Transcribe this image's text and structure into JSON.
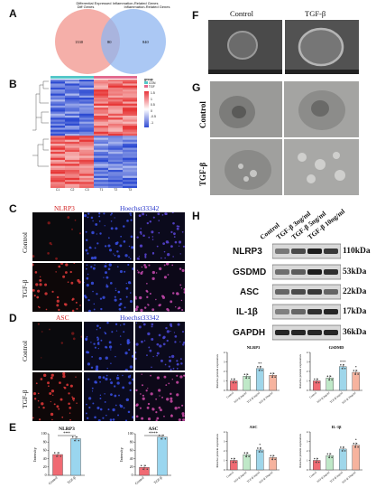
{
  "panels": {
    "A": "A",
    "B": "B",
    "C": "C",
    "D": "D",
    "E": "E",
    "F": "F",
    "G": "G",
    "H": "H"
  },
  "venn": {
    "title": "Differential Expressed Inflammation-Related Genes",
    "left_label": "Diff Genes",
    "right_label": "Inflammation-Related Genes",
    "left_only": "1330",
    "overlap": "80",
    "right_only": "840",
    "left_color": "#f4a6a0",
    "right_color": "#8fb6f0"
  },
  "heatmap": {
    "legend_title": "group",
    "legend_groups": [
      "CON",
      "TGF"
    ],
    "scale_ticks": [
      "1.5",
      "1",
      "0.5",
      "0",
      "-0.5",
      "-1",
      "-1.5"
    ],
    "col_labels": [
      "C1",
      "C2",
      "C3",
      "T1",
      "T2",
      "T3"
    ],
    "row_count": 54
  },
  "panel_c": {
    "header_left": "NLRP3",
    "header_right": "Hoechst33342",
    "rows": [
      "Control",
      "TGF-β"
    ]
  },
  "panel_d": {
    "header_left": "ASC",
    "header_right": "Hoechst33342",
    "rows": [
      "Control",
      "TGF-β"
    ]
  },
  "panel_f": {
    "col1": "Control",
    "col2": "TGF-β"
  },
  "panel_g": {
    "rows": [
      "Control",
      "TGF-β"
    ]
  },
  "blot": {
    "lanes": [
      "Control",
      "TGF-β 3ng/ml",
      "TGF-β 5ng/ml",
      "TGF-β 10ng/ml"
    ],
    "proteins": [
      {
        "name": "NLRP3",
        "kda": "110kDa"
      },
      {
        "name": "GSDMD",
        "kda": "53kDa"
      },
      {
        "name": "ASC",
        "kda": "22kDa"
      },
      {
        "name": "IL-1β",
        "kda": "17kDa"
      },
      {
        "name": "GAPDH",
        "kda": "36kDa"
      }
    ]
  },
  "chart_data": [
    {
      "type": "bar",
      "title": "NLRP3",
      "categories": [
        "Control",
        "TGF-β"
      ],
      "values": [
        50,
        88
      ],
      "ylabel": "Intensity",
      "ylim": [
        0,
        100
      ],
      "significance": "***",
      "colors": [
        "#f06a73",
        "#9ad6ef"
      ]
    },
    {
      "type": "bar",
      "title": "ASC",
      "categories": [
        "Control",
        "TGF-β"
      ],
      "values": [
        19,
        92
      ],
      "ylabel": "Intensity",
      "ylim": [
        0,
        100
      ],
      "significance": "****",
      "colors": [
        "#f06a73",
        "#9ad6ef"
      ]
    },
    {
      "type": "bar",
      "title": "NLRP3",
      "categories": [
        "Control",
        "TGF-β 3ng/ml",
        "TGF-β 5ng/ml",
        "TGF-β 10ng/ml"
      ],
      "values": [
        1.0,
        1.5,
        2.3,
        1.6
      ],
      "ylabel": "Relative protein expression",
      "ylim": [
        0,
        4
      ],
      "significance": [
        "",
        "",
        "**",
        ""
      ],
      "colors": [
        "#f06a73",
        "#bfe8c8",
        "#9fd6ea",
        "#f6b39e"
      ]
    },
    {
      "type": "bar",
      "title": "GSDMD",
      "categories": [
        "Control",
        "TGF-β 3ng/ml",
        "TGF-β 5ng/ml",
        "TGF-β 10ng/ml"
      ],
      "values": [
        1.0,
        1.3,
        2.5,
        1.9
      ],
      "ylabel": "Relative protein expression",
      "ylim": [
        0,
        4
      ],
      "significance": [
        "",
        "",
        "***",
        "*"
      ],
      "colors": [
        "#f06a73",
        "#bfe8c8",
        "#9fd6ea",
        "#f6b39e"
      ]
    },
    {
      "type": "bar",
      "title": "ASC",
      "categories": [
        "Control",
        "TGF-β 3ng/ml",
        "TGF-β 5ng/ml",
        "TGF-β 10ng/ml"
      ],
      "values": [
        1.0,
        1.6,
        2.1,
        1.3
      ],
      "ylabel": "Relative protein expression",
      "ylim": [
        0,
        4
      ],
      "significance": [
        "",
        "",
        "*",
        ""
      ],
      "colors": [
        "#f06a73",
        "#bfe8c8",
        "#9fd6ea",
        "#f6b39e"
      ]
    },
    {
      "type": "bar",
      "title": "IL-1β",
      "categories": [
        "Control",
        "TGF-β 3ng/ml",
        "TGF-β 5ng/ml",
        "TGF-β 10ng/ml"
      ],
      "values": [
        1.0,
        1.5,
        2.2,
        2.6
      ],
      "ylabel": "Relative protein expression",
      "ylim": [
        0,
        4
      ],
      "significance": [
        "",
        "",
        "",
        "*"
      ],
      "colors": [
        "#f06a73",
        "#bfe8c8",
        "#9fd6ea",
        "#f6b39e"
      ]
    }
  ]
}
